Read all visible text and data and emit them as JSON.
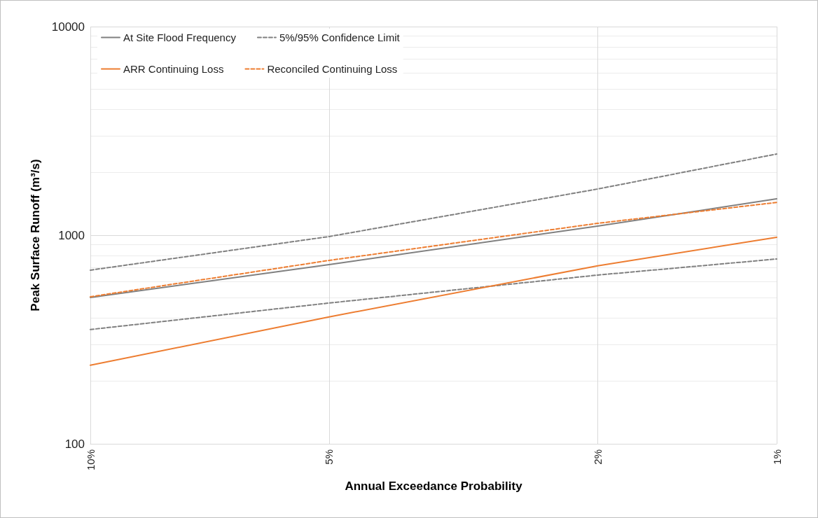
{
  "chart_data": {
    "type": "line",
    "xlabel": "Annual Exceedance Probability",
    "ylabel": "Peak Surface Runoff (m³/s)",
    "categories": [
      "10%",
      null,
      null,
      null,
      null,
      null,
      null,
      null,
      "5%",
      null,
      null,
      null,
      null,
      null,
      null,
      null,
      null,
      "2%",
      null,
      null,
      null,
      null,
      null,
      "1%"
    ],
    "ylim": [
      100,
      10000
    ],
    "yticks": [
      100,
      1000,
      10000
    ],
    "log": "y",
    "grid": true,
    "legend": "top left",
    "marker": "none",
    "series": [
      {
        "name": "At Site Flood Frequency",
        "color": "#808080",
        "line_style": "solid",
        "values": [
          503,
          null,
          null,
          null,
          null,
          null,
          null,
          null,
          723,
          null,
          null,
          null,
          null,
          null,
          null,
          null,
          null,
          1106,
          null,
          null,
          null,
          null,
          null,
          1494
        ]
      },
      {
        "name": "5%/95% Confidence Limit",
        "color": "#808080",
        "line_style": "dashed",
        "values": [
          680,
          null,
          null,
          null,
          null,
          null,
          null,
          null,
          985,
          null,
          null,
          null,
          null,
          null,
          null,
          null,
          null,
          1665,
          null,
          null,
          null,
          null,
          null,
          2450
        ]
      },
      {
        "color": "#808080",
        "line_style": "dashed",
        "values": [
          353,
          null,
          null,
          null,
          null,
          null,
          null,
          null,
          473,
          null,
          null,
          null,
          null,
          null,
          null,
          null,
          null,
          644,
          null,
          null,
          null,
          null,
          null,
          769
        ]
      },
      {
        "name": "ARR Continuing Loss",
        "color": "#ed7d31",
        "line_style": "solid",
        "values": [
          238,
          null,
          null,
          null,
          null,
          null,
          null,
          null,
          406,
          null,
          null,
          null,
          null,
          null,
          null,
          null,
          null,
          713,
          null,
          null,
          null,
          null,
          null,
          977
        ]
      },
      {
        "name": "Reconciled Continuing Loss",
        "color": "#ed7d31",
        "line_style": "dashed",
        "values": [
          507,
          null,
          null,
          null,
          null,
          null,
          null,
          null,
          757,
          null,
          null,
          null,
          null,
          null,
          null,
          null,
          null,
          1140,
          null,
          null,
          null,
          null,
          null,
          1436
        ]
      }
    ]
  }
}
